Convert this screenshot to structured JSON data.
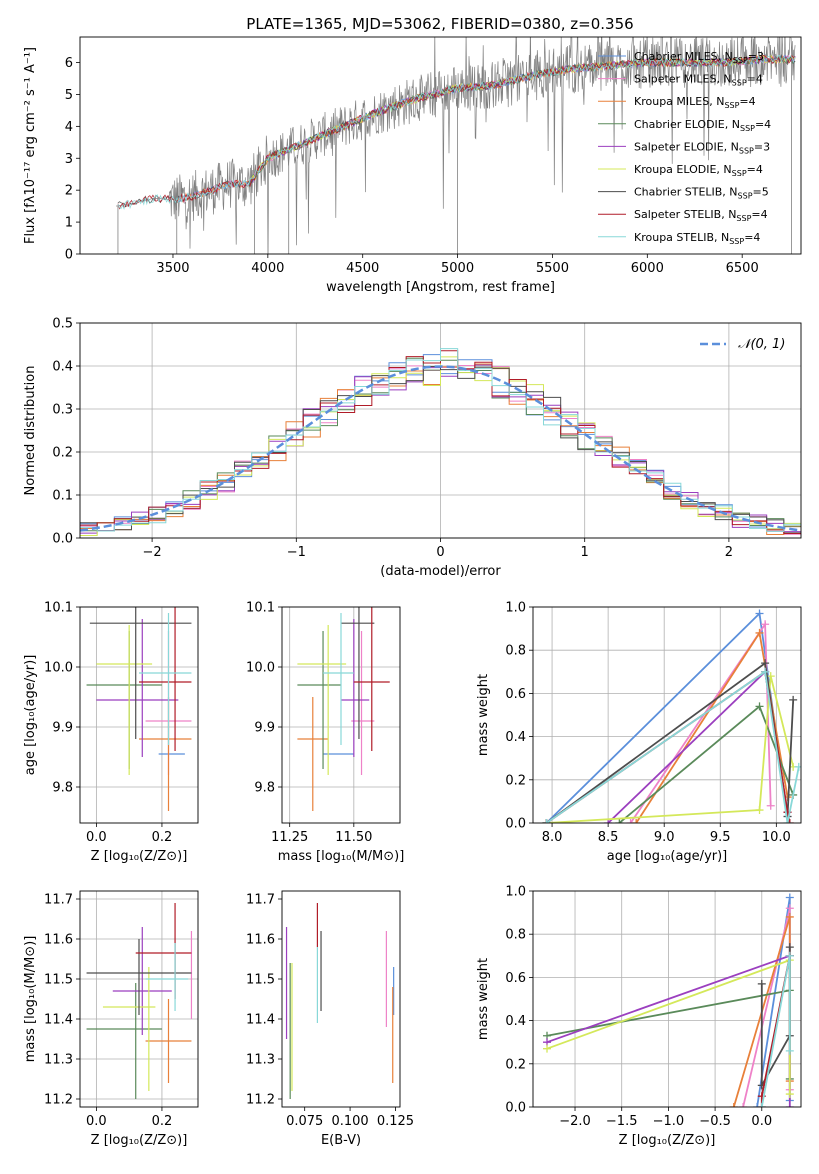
{
  "title": "PLATE=1365, MJD=53062, FIBERID=0380, z=0.356",
  "colors": {
    "Chabrier MILES": "#5b8fdb",
    "Salpeter MILES": "#ee82c8",
    "Kroupa MILES": "#e8803a",
    "Chabrier ELODIE": "#5a8a5a",
    "Salpeter ELODIE": "#9b3fbf",
    "Kroupa ELODIE": "#d4e85a",
    "Chabrier STELIB": "#4d4d4d",
    "Salpeter STELIB": "#b01c28",
    "Kroupa STELIB": "#88d8d8"
  },
  "chart_data": [
    {
      "id": "spectrum",
      "type": "line",
      "xlabel": "wavelength [Angstrom, rest frame]",
      "ylabel": "Flux [fλ10⁻¹⁷ erg cm⁻² s⁻¹ A⁻¹]",
      "xlim": [
        3010,
        6810
      ],
      "ylim": [
        0,
        6.8
      ],
      "xticks": [
        3500,
        4000,
        4500,
        5000,
        5500,
        6000,
        6500
      ],
      "yticks": [
        0,
        1,
        2,
        3,
        4,
        5,
        6
      ],
      "legend_position": "top-right",
      "legend": [
        {
          "name": "Chabrier MILES, N",
          "sub": "SSP",
          "suffix": "=3"
        },
        {
          "name": "Salpeter MILES, N",
          "sub": "SSP",
          "suffix": "=4"
        },
        {
          "name": "Kroupa MILES, N",
          "sub": "SSP",
          "suffix": "=4"
        },
        {
          "name": "Chabrier ELODIE, N",
          "sub": "SSP",
          "suffix": "=4"
        },
        {
          "name": "Salpeter ELODIE, N",
          "sub": "SSP",
          "suffix": "=3"
        },
        {
          "name": "Kroupa ELODIE, N",
          "sub": "SSP",
          "suffix": "=4"
        },
        {
          "name": "Chabrier STELIB, N",
          "sub": "SSP",
          "suffix": "=5"
        },
        {
          "name": "Salpeter STELIB, N",
          "sub": "SSP",
          "suffix": "=4"
        },
        {
          "name": "Kroupa STELIB, N",
          "sub": "SSP",
          "suffix": "=4"
        }
      ],
      "continuum": [
        [
          3200,
          1.5
        ],
        [
          3300,
          1.6
        ],
        [
          3400,
          1.75
        ],
        [
          3500,
          1.7
        ],
        [
          3600,
          1.8
        ],
        [
          3700,
          2.0
        ],
        [
          3800,
          2.2
        ],
        [
          3900,
          2.2
        ],
        [
          4000,
          3.0
        ],
        [
          4200,
          3.5
        ],
        [
          4400,
          4.0
        ],
        [
          4600,
          4.5
        ],
        [
          4800,
          4.9
        ],
        [
          5000,
          5.2
        ],
        [
          5200,
          5.3
        ],
        [
          5400,
          5.6
        ],
        [
          5600,
          5.8
        ],
        [
          5800,
          5.9
        ],
        [
          6000,
          6.0
        ],
        [
          6200,
          6.0
        ],
        [
          6400,
          6.0
        ],
        [
          6600,
          6.1
        ],
        [
          6780,
          6.1
        ]
      ]
    },
    {
      "id": "residuals",
      "type": "histogram",
      "xlabel": "(data-model)/error",
      "ylabel": "Normed distribution",
      "xlim": [
        -2.5,
        2.5
      ],
      "ylim": [
        0,
        0.5
      ],
      "xticks": [
        -2,
        -1,
        0,
        1,
        2
      ],
      "yticks": [
        0.0,
        0.1,
        0.2,
        0.3,
        0.4,
        0.5
      ],
      "grid": true,
      "legend_label": "𝒩(0, 1)",
      "reference_curve": "gaussian, mean 0, sigma 1"
    },
    {
      "id": "age-vs-Z",
      "type": "errorbar",
      "xlabel": "Z [log₁₀(Z/Z⊙)]",
      "ylabel": "age  [log₁₀(age/yr)]",
      "xlim": [
        -0.05,
        0.31
      ],
      "ylim": [
        9.74,
        10.1
      ],
      "xticks": [
        0.0,
        0.2
      ],
      "yticks": [
        9.8,
        9.9,
        10.0,
        10.1
      ],
      "grid": true,
      "points": [
        {
          "series": "Chabrier MILES",
          "x": 0.23,
          "y": 9.855,
          "xlo": 0.19,
          "xhi": 0.27,
          "ylo": 9.855,
          "yhi": 9.855
        },
        {
          "series": "Salpeter MILES",
          "x": 0.22,
          "y": 9.91,
          "xlo": 0.15,
          "xhi": 0.29,
          "ylo": 9.82,
          "yhi": 10.06
        },
        {
          "series": "Kroupa MILES",
          "x": 0.22,
          "y": 9.88,
          "xlo": 0.13,
          "xhi": 0.29,
          "ylo": 9.76,
          "yhi": 9.95
        },
        {
          "series": "Chabrier ELODIE",
          "x": 0.1,
          "y": 9.97,
          "xlo": -0.03,
          "xhi": 0.2,
          "ylo": 9.83,
          "yhi": 10.06
        },
        {
          "series": "Salpeter ELODIE",
          "x": 0.14,
          "y": 9.945,
          "xlo": 0.0,
          "xhi": 0.25,
          "ylo": 9.85,
          "yhi": 10.08
        },
        {
          "series": "Kroupa ELODIE",
          "x": 0.1,
          "y": 10.005,
          "xlo": 0.0,
          "xhi": 0.17,
          "ylo": 9.82,
          "yhi": 10.07
        },
        {
          "series": "Chabrier STELIB",
          "x": 0.12,
          "y": 10.073,
          "xlo": -0.02,
          "xhi": 0.29,
          "ylo": 9.88,
          "yhi": 10.17
        },
        {
          "series": "Salpeter STELIB",
          "x": 0.24,
          "y": 9.975,
          "xlo": 0.13,
          "xhi": 0.29,
          "ylo": 9.86,
          "yhi": 10.1
        },
        {
          "series": "Kroupa STELIB",
          "x": 0.22,
          "y": 9.99,
          "xlo": 0.13,
          "xhi": 0.29,
          "ylo": 9.87,
          "yhi": 10.09
        }
      ]
    },
    {
      "id": "age-vs-mass",
      "type": "errorbar",
      "xlabel": "mass [log₁₀(M/M⊙)]",
      "ylabel": "",
      "xlim": [
        11.22,
        11.68
      ],
      "ylim": [
        9.74,
        10.1
      ],
      "xticks": [
        11.25,
        11.5
      ],
      "yticks": [
        9.8,
        9.9,
        10.0,
        10.1
      ],
      "grid": true,
      "points": [
        {
          "series": "Chabrier MILES",
          "x": 11.45,
          "y": 9.855,
          "xlo": 11.38,
          "xhi": 11.5,
          "ylo": 9.855,
          "yhi": 9.855
        },
        {
          "series": "Salpeter MILES",
          "x": 11.53,
          "y": 9.91,
          "xlo": 11.49,
          "xhi": 11.58,
          "ylo": 9.82,
          "yhi": 10.06
        },
        {
          "series": "Kroupa MILES",
          "x": 11.34,
          "y": 9.88,
          "xlo": 11.28,
          "xhi": 11.4,
          "ylo": 9.76,
          "yhi": 9.95
        },
        {
          "series": "Chabrier ELODIE",
          "x": 11.38,
          "y": 9.97,
          "xlo": 11.28,
          "xhi": 11.45,
          "ylo": 9.83,
          "yhi": 10.06
        },
        {
          "series": "Salpeter ELODIE",
          "x": 11.5,
          "y": 9.945,
          "xlo": 11.45,
          "xhi": 11.56,
          "ylo": 9.85,
          "yhi": 10.08
        },
        {
          "series": "Kroupa ELODIE",
          "x": 11.4,
          "y": 10.005,
          "xlo": 11.28,
          "xhi": 11.47,
          "ylo": 9.82,
          "yhi": 10.07
        },
        {
          "series": "Chabrier STELIB",
          "x": 11.52,
          "y": 10.073,
          "xlo": 11.45,
          "xhi": 11.58,
          "ylo": 9.88,
          "yhi": 10.17
        },
        {
          "series": "Salpeter STELIB",
          "x": 11.57,
          "y": 9.975,
          "xlo": 11.5,
          "xhi": 11.64,
          "ylo": 9.86,
          "yhi": 10.1
        },
        {
          "series": "Kroupa STELIB",
          "x": 11.45,
          "y": 9.99,
          "xlo": 11.38,
          "xhi": 11.5,
          "ylo": 9.87,
          "yhi": 10.09
        }
      ]
    },
    {
      "id": "weight-vs-age",
      "type": "line",
      "xlabel": "age  [log₁₀(age/yr)]",
      "ylabel": "mass weight",
      "xlim": [
        7.83,
        10.22
      ],
      "ylim": [
        0,
        1.0
      ],
      "xticks": [
        8.0,
        8.5,
        9.0,
        9.5,
        10.0
      ],
      "yticks": [
        0.0,
        0.2,
        0.4,
        0.6,
        0.8,
        1.0
      ],
      "grid": true,
      "series": [
        {
          "name": "Chabrier MILES",
          "points": [
            [
              7.95,
              0.0
            ],
            [
              9.85,
              0.97
            ],
            [
              10.1,
              0.03
            ]
          ]
        },
        {
          "name": "Salpeter MILES",
          "points": [
            [
              8.7,
              0.0
            ],
            [
              9.9,
              0.92
            ],
            [
              9.95,
              0.08
            ]
          ]
        },
        {
          "name": "Kroupa MILES",
          "points": [
            [
              8.75,
              0.0
            ],
            [
              9.85,
              0.88
            ],
            [
              10.1,
              0.12
            ]
          ]
        },
        {
          "name": "Chabrier ELODIE",
          "points": [
            [
              8.6,
              0.0
            ],
            [
              9.85,
              0.54
            ],
            [
              10.15,
              0.13
            ]
          ]
        },
        {
          "name": "Salpeter ELODIE",
          "points": [
            [
              8.5,
              0.0
            ],
            [
              9.9,
              0.7
            ],
            [
              10.1,
              0.05
            ]
          ]
        },
        {
          "name": "Kroupa ELODIE",
          "points": [
            [
              7.95,
              0.0
            ],
            [
              9.85,
              0.06
            ],
            [
              9.95,
              0.68
            ],
            [
              10.15,
              0.26
            ]
          ]
        },
        {
          "name": "Chabrier STELIB",
          "points": [
            [
              7.95,
              0.0
            ],
            [
              9.9,
              0.74
            ],
            [
              10.1,
              0.03
            ],
            [
              10.15,
              0.57
            ]
          ]
        },
        {
          "name": "Salpeter STELIB",
          "points": [
            [
              7.95,
              0.0
            ],
            [
              9.9,
              0.7
            ],
            [
              10.1,
              0.05
            ],
            [
              10.12,
              0.0
            ]
          ]
        },
        {
          "name": "Kroupa STELIB",
          "points": [
            [
              7.95,
              0.0
            ],
            [
              9.9,
              0.7
            ],
            [
              10.1,
              0.0
            ],
            [
              10.2,
              0.26
            ]
          ]
        }
      ]
    },
    {
      "id": "mass-vs-Z",
      "type": "errorbar",
      "xlabel": "Z [log₁₀(Z/Z⊙)]",
      "ylabel": "mass [log₁₀(M/M⊙)]",
      "xlim": [
        -0.05,
        0.31
      ],
      "ylim": [
        11.18,
        11.72
      ],
      "xticks": [
        0.0,
        0.2
      ],
      "yticks": [
        11.2,
        11.3,
        11.4,
        11.5,
        11.6,
        11.7
      ],
      "grid": true,
      "points": [
        {
          "series": "Chabrier MILES",
          "x": 0.24,
          "y": 11.47,
          "xlo": 0.24,
          "xhi": 0.24,
          "ylo": 11.47,
          "yhi": 11.47
        },
        {
          "series": "Salpeter MILES",
          "x": 0.29,
          "y": 11.53,
          "xlo": 0.29,
          "xhi": 0.29,
          "ylo": 11.4,
          "yhi": 11.62
        },
        {
          "series": "Kroupa MILES",
          "x": 0.22,
          "y": 11.345,
          "xlo": 0.15,
          "xhi": 0.29,
          "ylo": 11.24,
          "yhi": 11.45
        },
        {
          "series": "Chabrier ELODIE",
          "x": 0.12,
          "y": 11.375,
          "xlo": -0.03,
          "xhi": 0.2,
          "ylo": 11.2,
          "yhi": 11.49
        },
        {
          "series": "Salpeter ELODIE",
          "x": 0.14,
          "y": 11.47,
          "xlo": 0.05,
          "xhi": 0.23,
          "ylo": 11.36,
          "yhi": 11.63
        },
        {
          "series": "Kroupa ELODIE",
          "x": 0.16,
          "y": 11.43,
          "xlo": 0.02,
          "xhi": 0.18,
          "ylo": 11.22,
          "yhi": 11.53
        },
        {
          "series": "Chabrier STELIB",
          "x": 0.13,
          "y": 11.515,
          "xlo": -0.03,
          "xhi": 0.29,
          "ylo": 11.41,
          "yhi": 11.6
        },
        {
          "series": "Salpeter STELIB",
          "x": 0.24,
          "y": 11.565,
          "xlo": 0.12,
          "xhi": 0.29,
          "ylo": 11.45,
          "yhi": 11.69
        },
        {
          "series": "Kroupa STELIB",
          "x": 0.24,
          "y": 11.5,
          "xlo": 0.15,
          "xhi": 0.28,
          "ylo": 11.42,
          "yhi": 11.59
        }
      ]
    },
    {
      "id": "mass-vs-EBV",
      "type": "errorbar",
      "xlabel": "E(B-V)",
      "ylabel": "",
      "xlim": [
        0.0625,
        0.1275
      ],
      "ylim": [
        11.18,
        11.72
      ],
      "xticks": [
        0.075,
        0.1,
        0.125
      ],
      "yticks": [
        11.2,
        11.3,
        11.4,
        11.5,
        11.6,
        11.7
      ],
      "grid": false,
      "points": [
        {
          "series": "Chabrier MILES",
          "x": 0.124,
          "y": 11.47,
          "xlo": 0.124,
          "xhi": 0.124,
          "ylo": 11.41,
          "yhi": 11.53
        },
        {
          "series": "Salpeter MILES",
          "x": 0.12,
          "y": 11.5,
          "xlo": 0.12,
          "xhi": 0.12,
          "ylo": 11.38,
          "yhi": 11.62
        },
        {
          "series": "Kroupa MILES",
          "x": 0.1235,
          "y": 11.36,
          "xlo": 0.1235,
          "xhi": 0.1235,
          "ylo": 11.24,
          "yhi": 11.48
        },
        {
          "series": "Chabrier ELODIE",
          "x": 0.067,
          "y": 11.38,
          "xlo": 0.067,
          "xhi": 0.067,
          "ylo": 11.2,
          "yhi": 11.54
        },
        {
          "series": "Salpeter ELODIE",
          "x": 0.065,
          "y": 11.49,
          "xlo": 0.065,
          "xhi": 0.065,
          "ylo": 11.35,
          "yhi": 11.63
        },
        {
          "series": "Kroupa ELODIE",
          "x": 0.068,
          "y": 11.38,
          "xlo": 0.068,
          "xhi": 0.068,
          "ylo": 11.22,
          "yhi": 11.54
        },
        {
          "series": "Chabrier STELIB",
          "x": 0.084,
          "y": 11.52,
          "xlo": 0.084,
          "xhi": 0.084,
          "ylo": 11.42,
          "yhi": 11.62
        },
        {
          "series": "Salpeter STELIB",
          "x": 0.082,
          "y": 11.63,
          "xlo": 0.082,
          "xhi": 0.082,
          "ylo": 11.58,
          "yhi": 11.69
        },
        {
          "series": "Kroupa STELIB",
          "x": 0.082,
          "y": 11.48,
          "xlo": 0.082,
          "xhi": 0.082,
          "ylo": 11.39,
          "yhi": 11.58
        }
      ]
    },
    {
      "id": "weight-vs-Z",
      "type": "line",
      "xlabel": "Z [log₁₀(Z/Z⊙)]",
      "ylabel": "mass weight",
      "xlim": [
        -2.45,
        0.42
      ],
      "ylim": [
        0,
        1.0
      ],
      "xticks": [
        -2.0,
        -1.5,
        -1.0,
        -0.5,
        0.0
      ],
      "yticks": [
        0.0,
        0.2,
        0.4,
        0.6,
        0.8,
        1.0
      ],
      "grid": true,
      "series": [
        {
          "name": "Chabrier MILES",
          "points": [
            [
              -0.05,
              0.0
            ],
            [
              0.3,
              0.97
            ],
            [
              0.3,
              0.03
            ]
          ]
        },
        {
          "name": "Salpeter MILES",
          "points": [
            [
              -0.2,
              0.0
            ],
            [
              0.3,
              0.92
            ],
            [
              0.3,
              0.08
            ]
          ]
        },
        {
          "name": "Kroupa MILES",
          "points": [
            [
              -0.3,
              0.0
            ],
            [
              0.3,
              0.88
            ],
            [
              0.3,
              0.12
            ]
          ]
        },
        {
          "name": "Chabrier ELODIE",
          "points": [
            [
              -2.3,
              0.33
            ],
            [
              0.3,
              0.54
            ],
            [
              0.3,
              0.13
            ]
          ]
        },
        {
          "name": "Salpeter ELODIE",
          "points": [
            [
              -2.3,
              0.3
            ],
            [
              0.3,
              0.7
            ],
            [
              0.3,
              0.0
            ]
          ]
        },
        {
          "name": "Kroupa ELODIE",
          "points": [
            [
              -2.3,
              0.27
            ],
            [
              0.3,
              0.68
            ],
            [
              0.3,
              0.06
            ]
          ]
        },
        {
          "name": "Chabrier STELIB",
          "points": [
            [
              0.0,
              0.57
            ],
            [
              0.0,
              0.1
            ],
            [
              0.3,
              0.33
            ],
            [
              0.3,
              0.74
            ]
          ]
        },
        {
          "name": "Salpeter STELIB",
          "points": [
            [
              0.0,
              0.0
            ],
            [
              0.0,
              0.05
            ],
            [
              0.3,
              0.7
            ]
          ]
        },
        {
          "name": "Kroupa STELIB",
          "points": [
            [
              0.0,
              0.0
            ],
            [
              0.3,
              0.7
            ],
            [
              0.3,
              0.26
            ]
          ]
        }
      ]
    }
  ]
}
